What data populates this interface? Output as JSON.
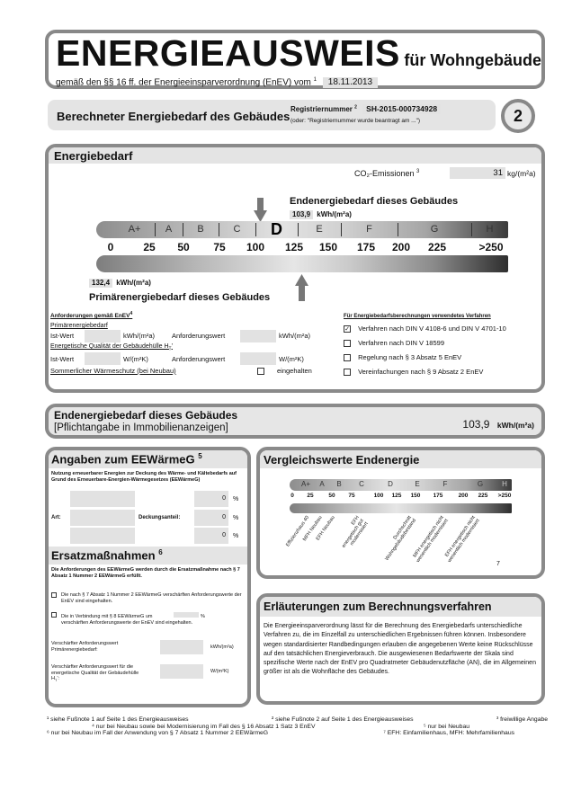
{
  "header": {
    "title": "ENERGIEAUSWEIS",
    "title_suffix": "für Wohngebäude",
    "subtitle": "gemäß den §§ 16 ff. der Energieeinsparverordnung (EnEV) vom",
    "subtitle_sup": "1",
    "date": "18.11.2013"
  },
  "section": {
    "title": "Berechneter Energiebedarf des Gebäudes",
    "reg_label": "Registriernummer",
    "reg_sup": "2",
    "reg_number": "SH-2015-000734928",
    "reg_note": "(oder: \"Registriernummer wurde beantragt am ...\")",
    "page_number": "2"
  },
  "energiebedarf": {
    "title": "Energiebedarf",
    "co2_label": "CO₂-Emissionen",
    "co2_sup": "3",
    "co2_value": "31",
    "co2_unit": "kg/(m²a)",
    "end_label": "Endenergiebedarf dieses Gebäudes",
    "end_value": "103,9",
    "end_unit": "kWh/(m²a)",
    "primary_label": "Primärenergiebedarf dieses Gebäudes",
    "primary_value": "132,4",
    "primary_unit": "kWh/(m²a)",
    "classes": [
      "A+",
      "A",
      "B",
      "C",
      "D",
      "E",
      "F",
      "G",
      "H"
    ],
    "active_class": "D",
    "ticks": [
      "0",
      "25",
      "50",
      "75",
      "100",
      "125",
      "150",
      "175",
      "200",
      "225",
      ">250"
    ]
  },
  "anforderungen": {
    "title": "Anforderungen gemäß EnEV",
    "title_sup": "4",
    "primary": "Primärenergiebedarf",
    "ist": "Ist-Wert",
    "unit_kwh": "kWh/(m²a)",
    "anf": "Anforderungswert",
    "huelle": "Energetische Qualität der Gebäudehülle H",
    "huelle_sub": "T",
    "unit_w": "W/(m²K)",
    "sommer": "Sommerlicher Wärmeschutz (bei Neubau)",
    "eingehalten": "eingehalten"
  },
  "verfahren": {
    "title": "Für Energiebedarfsberechnungen verwendetes Verfahren",
    "items": [
      {
        "label": "Verfahren nach DIN V 4108-6 und DIN V 4701-10",
        "checked": true
      },
      {
        "label": "Verfahren nach DIN V 18599",
        "checked": false
      },
      {
        "label": "Regelung nach § 3 Absatz 5 EnEV",
        "checked": false
      },
      {
        "label": "Vereinfachungen nach § 9 Absatz 2 EnEV",
        "checked": false
      }
    ]
  },
  "endbox": {
    "title": "Endenergiebedarf dieses Gebäudes",
    "subtitle": "[Pflichtangabe in Immobilienanzeigen]",
    "value": "103,9",
    "unit": "kWh/(m²a)"
  },
  "eewaerme": {
    "title": "Angaben zum EEWärmeG",
    "sup": "5",
    "intro": "Nutzung erneuerbarer Energien zur Deckung des Wärme- und Kältebedarfs auf Grund des Erneuerbare-Energien-Wärmegesetzes (EEWärmeG)",
    "art": "Art:",
    "deckung": "Deckungsanteil:",
    "values": [
      "0",
      "0",
      "0"
    ],
    "pct": "%"
  },
  "ersatz": {
    "title": "Ersatzmaßnahmen",
    "sup": "6",
    "intro": "Die Anforderungen des EEWärmeG werden durch die Ersatzmaßnahme nach § 7 Absatz 1 Nummer 2 EEWärmeG erfüllt.",
    "opt1": "Die nach § 7 Absatz 1 Nummer 2 EEWärmeG verschärften Anforderungswerte der EnEV sind eingehalten.",
    "opt2a": "Die in Verbindung mit § 8 EEWärmeG um",
    "opt2pct": "%",
    "opt2b": "verschärften Anforderungswerte der EnEV sind eingehalten.",
    "req1": "Verschärfter Anforderungswert Primärenergiebedarf:",
    "req1_unit": "kWh/(m²a)",
    "req2": "Verschärfter Anforderungswert für die energetische Qualität der Gebäudehülle H",
    "req2_sub": "T",
    "req2_unit": "W/(m²K)"
  },
  "vergleich": {
    "title": "Vergleichswerte Endenergie",
    "classes": [
      "A+",
      "A",
      "B",
      "C",
      "D",
      "E",
      "F",
      "G",
      "H"
    ],
    "ticks": [
      "0",
      "25",
      "50",
      "75",
      "100",
      "125",
      "150",
      "175",
      "200",
      "225",
      ">250"
    ],
    "labels": [
      "Effizienzhaus 40",
      "MFH Neubau",
      "EFH Neubau",
      "EFH energetisch gut modernisiert",
      "Durchschnitt Wohngebäudebestand",
      "MFH energetisch nicht wesentlich modernisiert",
      "EFH energetisch nicht wesentlich modernisiert"
    ],
    "footnote_ref": "7"
  },
  "erlaeuterung": {
    "title": "Erläuterungen zum Berechnungsverfahren",
    "text": "Die Energieeinsparverordnung lässt für die Berechnung des Energiebedarfs unterschiedliche Verfahren zu, die im Einzelfall zu unterschiedlichen Ergebnissen führen können. Insbesondere wegen standardisierter Randbedingungen erlauben die angegebenen Werte keine Rückschlüsse auf den tatsächlichen Energieverbrauch. Die ausgewiesenen Bedarfswerte der Skala sind spezifische Werte nach der EnEV pro Quadratmeter Gebäudenutzfläche (AN), die im Allgemeinen größer ist als die Wohnfläche des Gebäudes."
  },
  "footnotes": [
    "¹ siehe Fußnote 1 auf Seite 1 des Energieausweises",
    "² siehe Fußnote 2 auf Seite 1 des Energieausweises",
    "³ freiwillige Angabe",
    "⁴ nur bei Neubau sowie bei Modernisierung im Fall des § 16 Absatz 1 Satz 3 EnEV",
    "⁵ nur bei Neubau",
    "⁶ nur bei Neubau im Fall der Anwendung von § 7 Absatz 1 Nummer 2 EEWärmeG",
    "⁷ EFH: Einfamilienhaus, MFH: Mehrfamilienhaus"
  ]
}
